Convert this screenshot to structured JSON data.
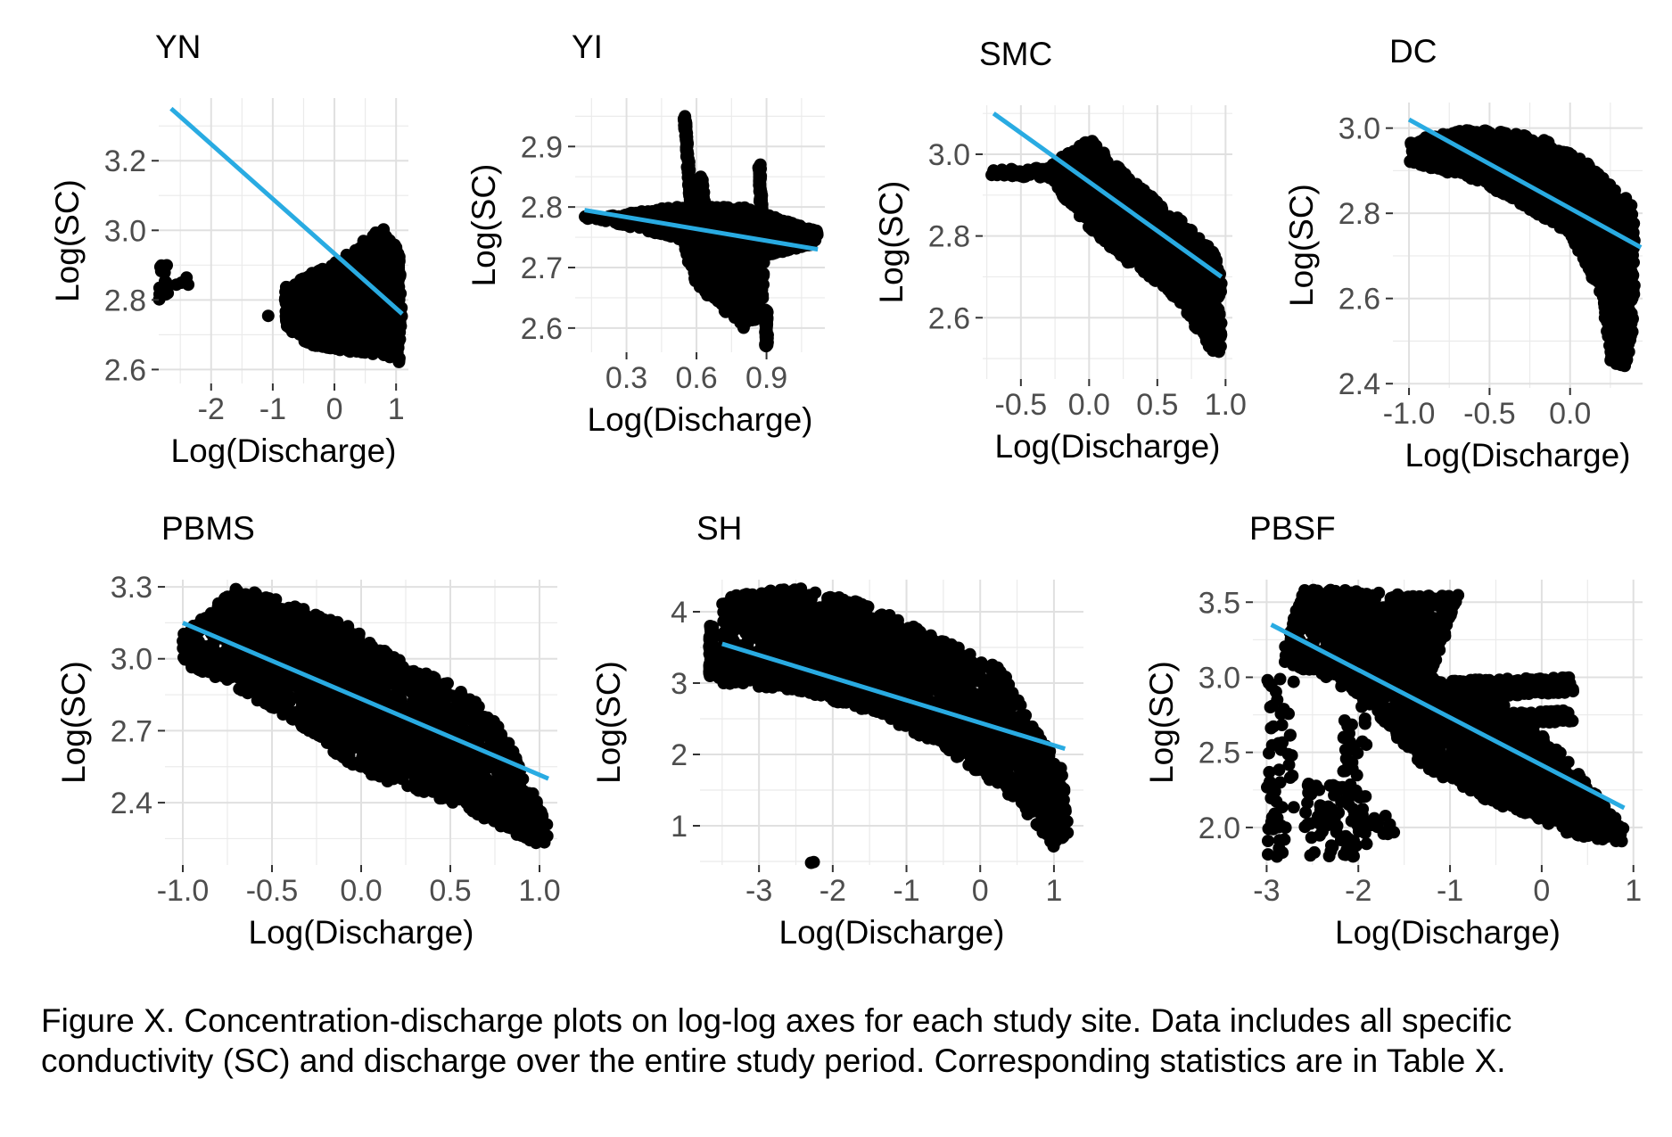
{
  "figure": {
    "caption": "Figure X. Concentration-discharge plots on log-log axes for each study site. Data includes all specific conductivity (SC) and discharge over the entire study period. Corresponding statistics are in Table X.",
    "colors": {
      "points": "#000000",
      "fit_line": "#29abe2",
      "grid": "#ebebeb"
    }
  },
  "chart_data": [
    {
      "type": "scatter",
      "title": "YN",
      "xlabel": "Log(Discharge)",
      "ylabel": "Log(SC)",
      "xlim": [
        -2.85,
        1.2
      ],
      "ylim": [
        2.56,
        3.38
      ],
      "xticks": [
        -2,
        -1,
        0,
        1
      ],
      "xtick_labels": [
        "-2",
        "-1",
        "0",
        "1"
      ],
      "yticks": [
        2.6,
        2.8,
        3.0,
        3.2
      ],
      "ytick_labels": [
        "2.6",
        "2.8",
        "3.0",
        "3.2"
      ],
      "fit_line": [
        [
          -2.65,
          3.35
        ],
        [
          1.1,
          2.76
        ]
      ],
      "clusters": [
        {
          "x": [
            -0.6,
            1.1
          ],
          "y": [
            2.62,
            2.92
          ],
          "n": 1000,
          "shape": "band",
          "poly": [
            [
              -0.8,
              2.84
            ],
            [
              0.1,
              2.92
            ],
            [
              0.55,
              2.98
            ],
            [
              0.8,
              3.01
            ],
            [
              1.05,
              2.94
            ],
            [
              1.1,
              2.75
            ],
            [
              1.05,
              2.62
            ],
            [
              0.8,
              2.64
            ],
            [
              0.3,
              2.65
            ],
            [
              -0.4,
              2.67
            ],
            [
              -0.8,
              2.72
            ]
          ]
        },
        {
          "x": [
            -2.85,
            -2.7
          ],
          "y": [
            2.8,
            2.9
          ],
          "n": 20
        },
        {
          "x": [
            -2.6,
            -2.2
          ],
          "y": [
            2.84,
            2.87
          ],
          "n": 4
        },
        {
          "x": [
            -1.2,
            -0.7
          ],
          "y": [
            2.74,
            2.76
          ],
          "n": 4
        }
      ]
    },
    {
      "type": "scatter",
      "title": "YI",
      "xlabel": "Log(Discharge)",
      "ylabel": "Log(SC)",
      "xlim": [
        0.08,
        1.15
      ],
      "ylim": [
        2.56,
        2.98
      ],
      "xticks": [
        0.3,
        0.6,
        0.9
      ],
      "xtick_labels": [
        "0.3",
        "0.6",
        "0.9"
      ],
      "yticks": [
        2.6,
        2.7,
        2.8,
        2.9
      ],
      "ytick_labels": [
        "2.6",
        "2.7",
        "2.8",
        "2.9"
      ],
      "fit_line": [
        [
          0.12,
          2.795
        ],
        [
          1.12,
          2.73
        ]
      ],
      "clusters": [
        {
          "shape": "band",
          "n": 1500,
          "poly": [
            [
              0.12,
              2.78
            ],
            [
              0.5,
              2.8
            ],
            [
              0.8,
              2.8
            ],
            [
              1.12,
              2.76
            ],
            [
              1.12,
              2.74
            ],
            [
              0.8,
              2.71
            ],
            [
              0.5,
              2.75
            ],
            [
              0.12,
              2.785
            ]
          ]
        },
        {
          "shape": "band",
          "n": 700,
          "poly": [
            [
              0.55,
              2.77
            ],
            [
              0.9,
              2.78
            ],
            [
              0.88,
              2.62
            ],
            [
              0.8,
              2.6
            ],
            [
              0.6,
              2.67
            ],
            [
              0.55,
              2.72
            ]
          ]
        },
        {
          "shape": "line",
          "n": 80,
          "pts": [
            [
              0.55,
              2.95
            ],
            [
              0.58,
              2.78
            ]
          ]
        },
        {
          "shape": "line",
          "n": 60,
          "pts": [
            [
              0.62,
              2.85
            ],
            [
              0.64,
              2.77
            ]
          ]
        },
        {
          "shape": "line",
          "n": 60,
          "pts": [
            [
              0.87,
              2.87
            ],
            [
              0.88,
              2.77
            ]
          ]
        },
        {
          "shape": "line",
          "n": 60,
          "pts": [
            [
              0.9,
              2.63
            ],
            [
              0.9,
              2.57
            ]
          ]
        }
      ]
    },
    {
      "type": "scatter",
      "title": "SMC",
      "xlabel": "Log(Discharge)",
      "ylabel": "Log(SC)",
      "xlim": [
        -0.78,
        1.05
      ],
      "ylim": [
        2.45,
        3.12
      ],
      "xticks": [
        -0.5,
        0.0,
        0.5,
        1.0
      ],
      "xtick_labels": [
        "-0.5",
        "0.0",
        "0.5",
        "1.0"
      ],
      "yticks": [
        2.6,
        2.8,
        3.0
      ],
      "ytick_labels": [
        "2.6",
        "2.8",
        "3.0"
      ],
      "fit_line": [
        [
          -0.7,
          3.1
        ],
        [
          0.97,
          2.7
        ]
      ],
      "clusters": [
        {
          "shape": "band",
          "n": 1600,
          "poly": [
            [
              -0.75,
              2.96
            ],
            [
              -0.3,
              2.97
            ],
            [
              0.0,
              3.04
            ],
            [
              0.3,
              2.94
            ],
            [
              0.6,
              2.86
            ],
            [
              0.9,
              2.77
            ],
            [
              0.97,
              2.72
            ],
            [
              0.97,
              2.5
            ],
            [
              0.9,
              2.52
            ],
            [
              0.6,
              2.66
            ],
            [
              0.3,
              2.73
            ],
            [
              0.0,
              2.82
            ],
            [
              -0.3,
              2.94
            ],
            [
              -0.75,
              2.95
            ]
          ]
        }
      ]
    },
    {
      "type": "scatter",
      "title": "DC",
      "xlabel": "Log(Discharge)",
      "ylabel": "Log(SC)",
      "xlim": [
        -1.1,
        0.45
      ],
      "ylim": [
        2.39,
        3.06
      ],
      "xticks": [
        -1.0,
        -0.5,
        0.0
      ],
      "xtick_labels": [
        "-1.0",
        "-0.5",
        "0.0"
      ],
      "yticks": [
        2.4,
        2.6,
        2.8,
        3.0
      ],
      "ytick_labels": [
        "2.4",
        "2.6",
        "2.8",
        "3.0"
      ],
      "fit_line": [
        [
          -1.0,
          3.02
        ],
        [
          0.44,
          2.72
        ]
      ],
      "clusters": [
        {
          "shape": "band",
          "n": 1600,
          "poly": [
            [
              -1.0,
              2.97
            ],
            [
              -0.6,
              3.0
            ],
            [
              -0.2,
              2.98
            ],
            [
              0.1,
              2.92
            ],
            [
              0.4,
              2.82
            ],
            [
              0.4,
              2.55
            ],
            [
              0.35,
              2.44
            ],
            [
              0.25,
              2.45
            ],
            [
              0.2,
              2.6
            ],
            [
              0.0,
              2.75
            ],
            [
              -0.3,
              2.82
            ],
            [
              -0.6,
              2.88
            ],
            [
              -1.0,
              2.92
            ]
          ]
        }
      ]
    },
    {
      "type": "scatter",
      "title": "PBMS",
      "xlabel": "Log(Discharge)",
      "ylabel": "Log(SC)",
      "xlim": [
        -1.1,
        1.1
      ],
      "ylim": [
        2.14,
        3.33
      ],
      "xticks": [
        -1.0,
        -0.5,
        0.0,
        0.5,
        1.0
      ],
      "xtick_labels": [
        "-1.0",
        "-0.5",
        "0.0",
        "0.5",
        "1.0"
      ],
      "yticks": [
        2.4,
        2.7,
        3.0,
        3.3
      ],
      "ytick_labels": [
        "2.4",
        "2.7",
        "3.0",
        "3.3"
      ],
      "fit_line": [
        [
          -1.0,
          3.15
        ],
        [
          1.05,
          2.5
        ]
      ],
      "clusters": [
        {
          "shape": "band",
          "n": 2000,
          "poly": [
            [
              -1.0,
              3.1
            ],
            [
              -0.7,
              3.3
            ],
            [
              -0.4,
              3.23
            ],
            [
              -0.1,
              3.15
            ],
            [
              0.2,
              3.0
            ],
            [
              0.45,
              2.92
            ],
            [
              0.65,
              2.82
            ],
            [
              0.8,
              2.7
            ],
            [
              1.05,
              2.3
            ],
            [
              1.05,
              2.2
            ],
            [
              0.7,
              2.33
            ],
            [
              0.4,
              2.43
            ],
            [
              0.0,
              2.52
            ],
            [
              -0.3,
              2.7
            ],
            [
              -0.7,
              2.88
            ],
            [
              -1.0,
              2.98
            ]
          ]
        }
      ]
    },
    {
      "type": "scatter",
      "title": "SH",
      "xlabel": "Log(Discharge)",
      "ylabel": "Log(SC)",
      "xlim": [
        -3.8,
        1.4
      ],
      "ylim": [
        0.45,
        4.45
      ],
      "xticks": [
        -3,
        -2,
        -1,
        0,
        1
      ],
      "xtick_labels": [
        "-3",
        "-2",
        "-1",
        "0",
        "1"
      ],
      "yticks": [
        1,
        2,
        3,
        4
      ],
      "ytick_labels": [
        "1",
        "2",
        "3",
        "4"
      ],
      "fit_line": [
        [
          -3.5,
          3.55
        ],
        [
          1.15,
          2.08
        ]
      ],
      "clusters": [
        {
          "shape": "band",
          "n": 2200,
          "poly": [
            [
              -3.55,
              3.0
            ],
            [
              -3.5,
              4.2
            ],
            [
              -2.5,
              4.35
            ],
            [
              -1.5,
              4.1
            ],
            [
              -0.5,
              3.6
            ],
            [
              0.3,
              3.2
            ],
            [
              0.7,
              2.4
            ],
            [
              1.1,
              1.9
            ],
            [
              1.2,
              0.9
            ],
            [
              1.0,
              0.7
            ],
            [
              0.7,
              1.1
            ],
            [
              0.3,
              1.5
            ],
            [
              -0.5,
              2.1
            ],
            [
              -1.5,
              2.6
            ],
            [
              -2.5,
              2.9
            ],
            [
              -3.55,
              3.0
            ]
          ]
        },
        {
          "shape": "line",
          "n": 60,
          "pts": [
            [
              -3.65,
              3.1
            ],
            [
              -3.65,
              3.8
            ]
          ]
        },
        {
          "x": [
            -2.3,
            -2.25
          ],
          "y": [
            0.48,
            0.5
          ],
          "n": 2
        }
      ]
    },
    {
      "type": "scatter",
      "title": "PBSF",
      "xlabel": "Log(Discharge)",
      "ylabel": "Log(SC)",
      "xlim": [
        -3.15,
        1.1
      ],
      "ylim": [
        1.75,
        3.65
      ],
      "xticks": [
        -3,
        -2,
        -1,
        0,
        1
      ],
      "xtick_labels": [
        "-3",
        "-2",
        "-1",
        "0",
        "1"
      ],
      "yticks": [
        2.0,
        2.5,
        3.0,
        3.5
      ],
      "ytick_labels": [
        "2.0",
        "2.5",
        "3.0",
        "3.5"
      ],
      "fit_line": [
        [
          -2.95,
          3.35
        ],
        [
          0.9,
          2.13
        ]
      ],
      "clusters": [
        {
          "shape": "band",
          "n": 2000,
          "poly": [
            [
              -2.8,
              3.2
            ],
            [
              -2.6,
              3.6
            ],
            [
              -1.5,
              3.55
            ],
            [
              -0.9,
              3.55
            ],
            [
              -1.2,
              3.0
            ],
            [
              -0.4,
              2.85
            ],
            [
              0.2,
              2.5
            ],
            [
              0.9,
              2.0
            ],
            [
              0.9,
              1.9
            ],
            [
              0.3,
              1.95
            ],
            [
              -0.5,
              2.15
            ],
            [
              -1.3,
              2.4
            ],
            [
              -2.0,
              2.9
            ],
            [
              -2.8,
              3.1
            ]
          ]
        },
        {
          "shape": "band",
          "n": 300,
          "poly": [
            [
              -1.0,
              2.98
            ],
            [
              0.3,
              3.0
            ],
            [
              0.35,
              2.9
            ],
            [
              -1.0,
              2.85
            ]
          ]
        },
        {
          "shape": "band",
          "n": 150,
          "poly": [
            [
              -0.9,
              2.75
            ],
            [
              0.3,
              2.78
            ],
            [
              0.35,
              2.7
            ],
            [
              -0.9,
              2.68
            ]
          ]
        },
        {
          "x": [
            -3.0,
            -2.7
          ],
          "y": [
            1.8,
            3.0
          ],
          "n": 60
        },
        {
          "x": [
            -2.6,
            -1.9
          ],
          "y": [
            1.8,
            2.3
          ],
          "n": 80
        },
        {
          "x": [
            -2.2,
            -1.9
          ],
          "y": [
            2.3,
            3.2
          ],
          "n": 40
        },
        {
          "x": [
            -2.0,
            -1.6
          ],
          "y": [
            1.95,
            2.1
          ],
          "n": 15
        }
      ]
    }
  ]
}
